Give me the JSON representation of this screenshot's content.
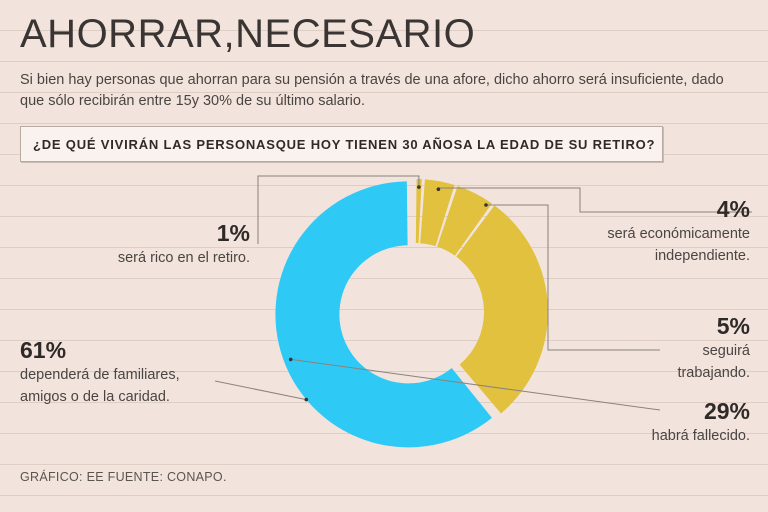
{
  "title": "AHORRAR,NECESARIO",
  "subtitle": "Si bien hay personas que ahorran para su pensión a través de una afore, dicho ahorro será insuficiente, dado que sólo recibirán entre 15y 30% de su último salario.",
  "question": "¿DE QUÉ VIVIRÁN LAS PERSONASQUE HOY TIENEN 30 AÑOSA LA EDAD DE SU RETIRO?",
  "source": "GRÁFICO: EE  FUENTE: CONAPO.",
  "colors": {
    "background": "#f2e4dc",
    "yellow": "#e1c13e",
    "blue": "#2ecaf5",
    "line": "#8a827d"
  },
  "chart_data": {
    "type": "pie",
    "variant": "donut",
    "title": "¿DE QUÉ VIVIRÁN LAS PERSONASQUE HOY TIENEN 30 AÑOSA LA EDAD DE SU RETIRO?",
    "slices": [
      {
        "value": 1,
        "value_label": "1%",
        "label": "será rico en el retiro.",
        "color": "#e1c13e"
      },
      {
        "value": 4,
        "value_label": "4%",
        "label": "será económicamente independiente.",
        "color": "#e1c13e"
      },
      {
        "value": 5,
        "value_label": "5%",
        "label": "seguirá trabajando.",
        "color": "#e1c13e"
      },
      {
        "value": 29,
        "value_label": "29%",
        "label": "habrá fallecido.",
        "color": "#e1c13e"
      },
      {
        "value": 61,
        "value_label": "61%",
        "label": "dependerá de familiares, amigos o de la caridad.",
        "color": "#2ecaf5",
        "exploded": true
      }
    ]
  },
  "labels": {
    "s1": {
      "pct": "1%",
      "desc": "será rico en el retiro."
    },
    "s4": {
      "pct": "4%",
      "line1": "será económicamente",
      "line2": "independiente."
    },
    "s5": {
      "pct": "5%",
      "line1": "seguirá",
      "line2": "trabajando."
    },
    "s29": {
      "pct": "29%",
      "desc": "habrá fallecido."
    },
    "s61": {
      "pct": "61%",
      "line1": "dependerá de familiares,",
      "line2": "amigos o de la caridad."
    }
  }
}
